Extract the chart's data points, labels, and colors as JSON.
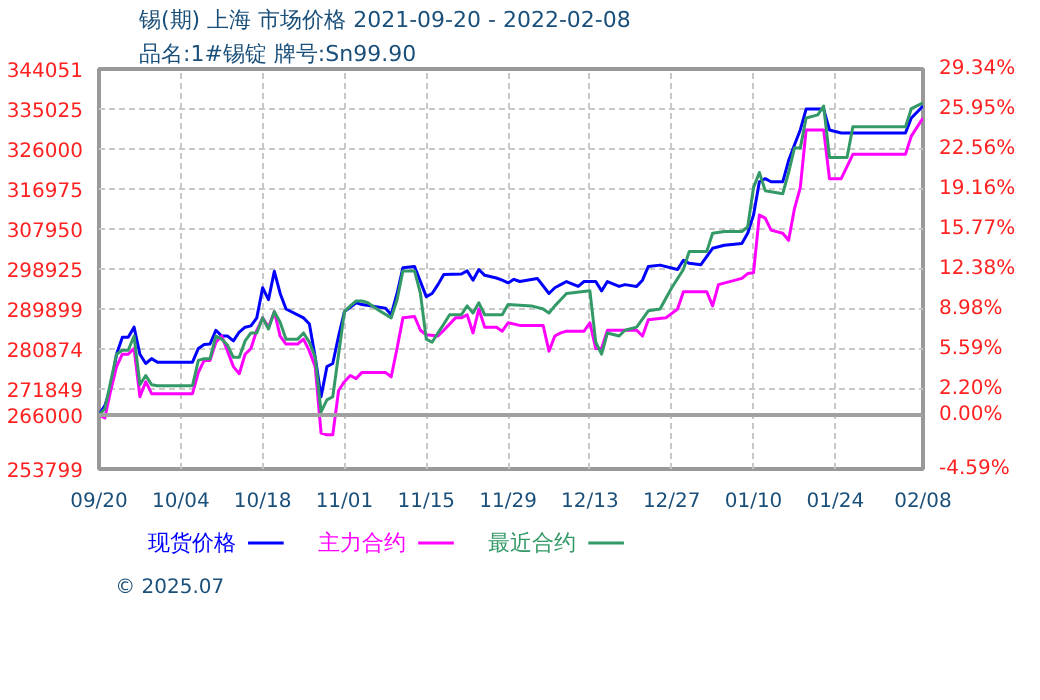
{
  "chart_data": {
    "type": "line",
    "title": "锡(期) 上海 市场价格 2021-09-20 - 2022-02-08",
    "subtitle": "品名:1#锡锭 牌号:Sn99.90",
    "annotations": [
      "© 2025.07"
    ],
    "xlim": [
      "2021-09-20",
      "2022-02-08"
    ],
    "xticks": [
      {
        "value": "2021-09-20",
        "label": "09/20"
      },
      {
        "value": "2021-10-04",
        "label": "10/04"
      },
      {
        "value": "2021-10-18",
        "label": "10/18"
      },
      {
        "value": "2021-11-01",
        "label": "11/01"
      },
      {
        "value": "2021-11-15",
        "label": "11/15"
      },
      {
        "value": "2021-11-29",
        "label": "11/29"
      },
      {
        "value": "2021-12-13",
        "label": "12/13"
      },
      {
        "value": "2021-12-27",
        "label": "12/27"
      },
      {
        "value": "2022-01-10",
        "label": "01/10"
      },
      {
        "value": "2022-01-24",
        "label": "01/24"
      },
      {
        "value": "2022-02-08",
        "label": "02/08"
      }
    ],
    "ylim": [
      253799,
      344051
    ],
    "yticks": [
      253799,
      266000,
      271849,
      280874,
      289899,
      298925,
      307950,
      316975,
      326000,
      335025,
      344051
    ],
    "y2lim": [
      -4.59,
      29.34
    ],
    "y2ticks": [
      {
        "value": -4.59,
        "label": "-4.59%"
      },
      {
        "value": 0,
        "label": "0.00%"
      },
      {
        "value": 2.2,
        "label": "2.20%"
      },
      {
        "value": 5.59,
        "label": "5.59%"
      },
      {
        "value": 8.98,
        "label": "8.98%"
      },
      {
        "value": 12.38,
        "label": "12.38%"
      },
      {
        "value": 15.77,
        "label": "15.77%"
      },
      {
        "value": 19.16,
        "label": "19.16%"
      },
      {
        "value": 22.56,
        "label": "22.56%"
      },
      {
        "value": 25.95,
        "label": "25.95%"
      },
      {
        "value": 29.34,
        "label": "29.34%"
      }
    ],
    "ref_lines": [
      {
        "axis": "y",
        "value": 266000,
        "color": "#a0a0a0"
      }
    ],
    "grid": true,
    "legend": "bottom",
    "series": [
      {
        "name": "现货价格",
        "color": "#0000ff",
        "x": [
          "2021-09-20",
          "2021-09-21",
          "2021-09-22",
          "2021-09-23",
          "2021-09-24",
          "2021-09-25",
          "2021-09-26",
          "2021-09-27",
          "2021-09-28",
          "2021-09-29",
          "2021-09-30",
          "2021-10-06",
          "2021-10-07",
          "2021-10-08",
          "2021-10-09",
          "2021-10-10",
          "2021-10-11",
          "2021-10-12",
          "2021-10-13",
          "2021-10-14",
          "2021-10-15",
          "2021-10-16",
          "2021-10-17",
          "2021-10-18",
          "2021-10-19",
          "2021-10-20",
          "2021-10-21",
          "2021-10-22",
          "2021-10-25",
          "2021-10-26",
          "2021-10-27",
          "2021-10-28",
          "2021-10-29",
          "2021-10-30",
          "2021-10-31",
          "2021-11-01",
          "2021-11-02",
          "2021-11-03",
          "2021-11-04",
          "2021-11-08",
          "2021-11-09",
          "2021-11-10",
          "2021-11-11",
          "2021-11-13",
          "2021-11-14",
          "2021-11-15",
          "2021-11-16",
          "2021-11-17",
          "2021-11-18",
          "2021-11-21",
          "2021-11-22",
          "2021-11-23",
          "2021-11-24",
          "2021-11-25",
          "2021-11-27",
          "2021-11-28",
          "2021-11-29",
          "2021-11-30",
          "2021-12-01",
          "2021-12-04",
          "2021-12-06",
          "2021-12-07",
          "2021-12-08",
          "2021-12-09",
          "2021-12-11",
          "2021-12-12",
          "2021-12-14",
          "2021-12-15",
          "2021-12-16",
          "2021-12-18",
          "2021-12-19",
          "2021-12-21",
          "2021-12-22",
          "2021-12-23",
          "2021-12-25",
          "2021-12-28",
          "2021-12-29",
          "2021-12-30",
          "2022-01-01",
          "2022-01-03",
          "2022-01-05",
          "2022-01-08",
          "2022-01-09",
          "2022-01-10",
          "2022-01-11",
          "2022-01-12",
          "2022-01-13",
          "2022-01-15",
          "2022-01-16",
          "2022-01-17",
          "2022-01-18",
          "2022-01-19",
          "2022-01-22",
          "2022-01-23",
          "2022-01-25",
          "2022-02-05",
          "2022-02-06",
          "2022-02-08"
        ],
        "values": [
          266000,
          268100,
          272200,
          279700,
          283500,
          283500,
          285800,
          279700,
          277600,
          278700,
          277900,
          277900,
          281000,
          281900,
          282000,
          285100,
          283800,
          283800,
          282700,
          284700,
          285800,
          286100,
          287900,
          294700,
          292000,
          298400,
          293400,
          289900,
          287900,
          286500,
          279000,
          270100,
          276900,
          277600,
          283800,
          289300,
          290300,
          291300,
          290900,
          290100,
          288600,
          293400,
          299200,
          299500,
          296100,
          292700,
          293400,
          295400,
          297700,
          297800,
          298500,
          296400,
          298800,
          297500,
          296900,
          296400,
          295800,
          296600,
          296100,
          296800,
          293400,
          294700,
          295400,
          296100,
          295000,
          296100,
          296100,
          294000,
          296100,
          295000,
          295400,
          295000,
          296400,
          299500,
          299800,
          298800,
          300900,
          300200,
          299900,
          303600,
          304300,
          304700,
          307000,
          311100,
          318600,
          319300,
          318600,
          318600,
          323400,
          326900,
          330300,
          335000,
          335000,
          330300,
          329600,
          329600,
          333000,
          335700
        ]
      },
      {
        "name": "主力合约",
        "color": "#ff00ff",
        "x": [
          "2021-09-20",
          "2021-09-21",
          "2021-09-22",
          "2021-09-23",
          "2021-09-24",
          "2021-09-25",
          "2021-09-26",
          "2021-09-27",
          "2021-09-28",
          "2021-09-29",
          "2021-10-06",
          "2021-10-07",
          "2021-10-08",
          "2021-10-09",
          "2021-10-10",
          "2021-10-11",
          "2021-10-12",
          "2021-10-13",
          "2021-10-14",
          "2021-10-15",
          "2021-10-16",
          "2021-10-17",
          "2021-10-18",
          "2021-10-19",
          "2021-10-20",
          "2021-10-21",
          "2021-10-22",
          "2021-10-24",
          "2021-10-25",
          "2021-10-26",
          "2021-10-27",
          "2021-10-28",
          "2021-10-29",
          "2021-10-30",
          "2021-10-31",
          "2021-11-01",
          "2021-11-02",
          "2021-11-03",
          "2021-11-04",
          "2021-11-08",
          "2021-11-09",
          "2021-11-10",
          "2021-11-11",
          "2021-11-13",
          "2021-11-14",
          "2021-11-15",
          "2021-11-17",
          "2021-11-18",
          "2021-11-20",
          "2021-11-21",
          "2021-11-22",
          "2021-11-23",
          "2021-11-24",
          "2021-11-25",
          "2021-11-27",
          "2021-11-28",
          "2021-11-29",
          "2021-12-01",
          "2021-12-05",
          "2021-12-06",
          "2021-12-07",
          "2021-12-08",
          "2021-12-09",
          "2021-12-12",
          "2021-12-13",
          "2021-12-14",
          "2021-12-15",
          "2021-12-16",
          "2021-12-21",
          "2021-12-22",
          "2021-12-23",
          "2021-12-26",
          "2021-12-28",
          "2021-12-29",
          "2022-01-02",
          "2022-01-03",
          "2022-01-04",
          "2022-01-08",
          "2022-01-09",
          "2022-01-10",
          "2022-01-11",
          "2022-01-12",
          "2022-01-13",
          "2022-01-15",
          "2022-01-16",
          "2022-01-17",
          "2022-01-18",
          "2022-01-19",
          "2022-01-22",
          "2022-01-23",
          "2022-01-25",
          "2022-01-27",
          "2022-02-05",
          "2022-02-06",
          "2022-02-08"
        ],
        "values": [
          266000,
          265300,
          271500,
          276900,
          279700,
          279700,
          281000,
          270100,
          273500,
          270800,
          270800,
          275600,
          278300,
          278300,
          282400,
          283800,
          280400,
          276900,
          275300,
          279700,
          281000,
          285100,
          287900,
          285800,
          289300,
          283800,
          282000,
          282000,
          283100,
          280400,
          276900,
          261900,
          261500,
          261500,
          271500,
          273500,
          274900,
          274200,
          275600,
          275600,
          274600,
          281000,
          287900,
          288200,
          285100,
          284100,
          283800,
          285100,
          287900,
          287900,
          288600,
          284500,
          289900,
          285800,
          285800,
          284900,
          286800,
          286200,
          286200,
          280400,
          283800,
          284500,
          284900,
          284900,
          286800,
          281000,
          281000,
          285100,
          285100,
          283800,
          287500,
          287900,
          289900,
          293800,
          293800,
          290600,
          295400,
          296800,
          297900,
          298100,
          311100,
          310400,
          307700,
          307000,
          305400,
          312500,
          317300,
          330300,
          330300,
          319300,
          319300,
          324800,
          324800,
          328900,
          333000
        ]
      },
      {
        "name": "最近合约",
        "color": "#339966",
        "x": [
          "2021-09-20",
          "2021-09-21",
          "2021-09-22",
          "2021-09-23",
          "2021-09-24",
          "2021-09-25",
          "2021-09-26",
          "2021-09-27",
          "2021-09-28",
          "2021-09-29",
          "2021-09-30",
          "2021-10-06",
          "2021-10-07",
          "2021-10-08",
          "2021-10-09",
          "2021-10-10",
          "2021-10-11",
          "2021-10-12",
          "2021-10-13",
          "2021-10-14",
          "2021-10-15",
          "2021-10-16",
          "2021-10-17",
          "2021-10-18",
          "2021-10-19",
          "2021-10-20",
          "2021-10-21",
          "2021-10-22",
          "2021-10-24",
          "2021-10-25",
          "2021-10-26",
          "2021-10-27",
          "2021-10-28",
          "2021-10-29",
          "2021-10-30",
          "2021-10-31",
          "2021-11-01",
          "2021-11-02",
          "2021-11-03",
          "2021-11-04",
          "2021-11-05",
          "2021-11-07",
          "2021-11-09",
          "2021-11-10",
          "2021-11-11",
          "2021-11-13",
          "2021-11-14",
          "2021-11-15",
          "2021-11-16",
          "2021-11-17",
          "2021-11-18",
          "2021-11-19",
          "2021-11-21",
          "2021-11-22",
          "2021-11-23",
          "2021-11-24",
          "2021-11-25",
          "2021-11-28",
          "2021-11-29",
          "2021-12-03",
          "2021-12-05",
          "2021-12-06",
          "2021-12-07",
          "2021-12-08",
          "2021-12-09",
          "2021-12-13",
          "2021-12-14",
          "2021-12-15",
          "2021-12-16",
          "2021-12-18",
          "2021-12-19",
          "2021-12-21",
          "2021-12-23",
          "2021-12-25",
          "2021-12-27",
          "2021-12-29",
          "2021-12-30",
          "2022-01-02",
          "2022-01-03",
          "2022-01-05",
          "2022-01-08",
          "2022-01-09",
          "2022-01-10",
          "2022-01-11",
          "2022-01-12",
          "2022-01-15",
          "2022-01-16",
          "2022-01-17",
          "2022-01-18",
          "2022-01-19",
          "2022-01-21",
          "2022-01-22",
          "2022-01-23",
          "2022-01-26",
          "2022-01-27",
          "2022-02-05",
          "2022-02-06",
          "2022-02-08"
        ],
        "values": [
          266000,
          267400,
          273500,
          279700,
          280600,
          280600,
          283800,
          272800,
          274900,
          272800,
          272600,
          272600,
          278300,
          278700,
          278700,
          283800,
          283100,
          281700,
          279000,
          279000,
          282700,
          284500,
          284500,
          287900,
          285400,
          289300,
          286900,
          283100,
          283100,
          284500,
          282400,
          279000,
          266700,
          269400,
          270100,
          279700,
          289300,
          290600,
          291700,
          291700,
          291300,
          289500,
          287900,
          292000,
          298500,
          298500,
          293400,
          283100,
          282400,
          284500,
          286500,
          288600,
          288600,
          290600,
          289000,
          291300,
          288600,
          288600,
          290900,
          290600,
          289900,
          289000,
          290600,
          292000,
          293400,
          294000,
          282400,
          279700,
          284500,
          283800,
          285100,
          285800,
          289500,
          289900,
          294700,
          298800,
          302900,
          302900,
          307000,
          307400,
          307400,
          308400,
          317300,
          320700,
          316600,
          315900,
          320700,
          326200,
          326200,
          333000,
          333700,
          335700,
          324100,
          324100,
          331000,
          331000,
          335100,
          336400
        ]
      }
    ]
  }
}
